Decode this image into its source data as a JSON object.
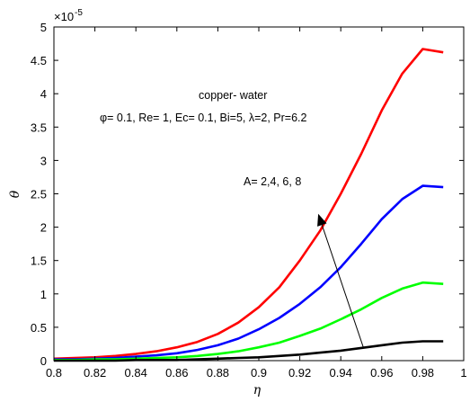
{
  "chart_data": {
    "type": "line",
    "xlabel": "η",
    "ylabel": "θ",
    "xlim": [
      0.8,
      1.0
    ],
    "ylim": [
      0,
      5
    ],
    "xticks": [
      "0.8",
      "0.82",
      "0.84",
      "0.86",
      "0.88",
      "0.9",
      "0.92",
      "0.94",
      "0.96",
      "0.98",
      "1"
    ],
    "yticks": [
      "0",
      "0.5",
      "1",
      "1.5",
      "2",
      "2.5",
      "3",
      "3.5",
      "4",
      "4.5",
      "5"
    ],
    "y_exponent_label": "×10",
    "y_exponent_power": "-5",
    "grid": false,
    "annotations": {
      "fluid": "copper- water",
      "params": "φ= 0.1, Re= 1, Ec= 0.1, Bi=5, λ=2, Pr=6.2",
      "arrow_label": "A= 2,4, 6, 8"
    },
    "arrow": {
      "from": [
        0.951,
        0.2
      ],
      "to": [
        0.929,
        2.2
      ]
    },
    "x": [
      0.8,
      0.81,
      0.82,
      0.83,
      0.84,
      0.85,
      0.86,
      0.87,
      0.88,
      0.89,
      0.9,
      0.91,
      0.92,
      0.93,
      0.94,
      0.95,
      0.96,
      0.97,
      0.98,
      0.99
    ],
    "series": [
      {
        "color": "#ff0000",
        "values": [
          0.03,
          0.04,
          0.05,
          0.07,
          0.1,
          0.14,
          0.2,
          0.28,
          0.4,
          0.57,
          0.8,
          1.1,
          1.5,
          1.95,
          2.5,
          3.1,
          3.75,
          4.3,
          4.67,
          4.62
        ]
      },
      {
        "color": "#0000ff",
        "values": [
          0.02,
          0.02,
          0.03,
          0.04,
          0.06,
          0.08,
          0.11,
          0.16,
          0.23,
          0.33,
          0.47,
          0.64,
          0.85,
          1.1,
          1.4,
          1.75,
          2.12,
          2.42,
          2.62,
          2.6
        ]
      },
      {
        "color": "#00ff00",
        "values": [
          0.01,
          0.01,
          0.02,
          0.02,
          0.03,
          0.04,
          0.05,
          0.07,
          0.1,
          0.14,
          0.2,
          0.27,
          0.37,
          0.48,
          0.62,
          0.77,
          0.94,
          1.08,
          1.17,
          1.15
        ]
      },
      {
        "color": "#000000",
        "values": [
          0.0,
          0.0,
          0.0,
          0.0,
          0.01,
          0.01,
          0.01,
          0.02,
          0.03,
          0.04,
          0.05,
          0.07,
          0.09,
          0.12,
          0.15,
          0.19,
          0.23,
          0.27,
          0.29,
          0.29
        ]
      }
    ]
  }
}
